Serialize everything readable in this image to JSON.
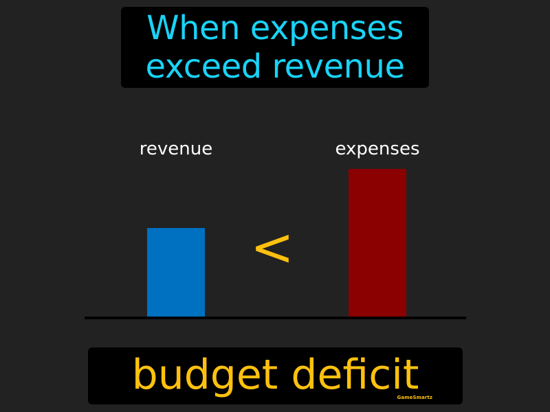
{
  "title": {
    "line1": "When expenses",
    "line2": "exceed revenue",
    "color": "#19D3F7"
  },
  "chart_data": {
    "type": "bar",
    "categories": [
      "revenue",
      "expenses"
    ],
    "values": [
      0.6,
      1.0
    ],
    "colors": [
      "#0070C0",
      "#8B0000"
    ],
    "comparison_symbol": "<",
    "comparison_color": "#FFC10E"
  },
  "term": {
    "text": "budget deficit",
    "color": "#FFC10E"
  },
  "brand": {
    "text": "GameSmartz"
  }
}
